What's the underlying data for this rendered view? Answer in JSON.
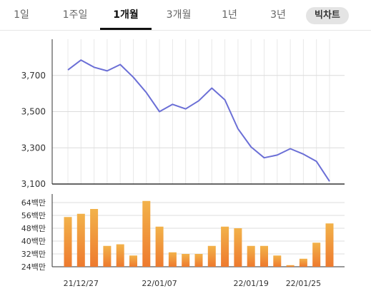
{
  "tabs": [
    {
      "label": "1일"
    },
    {
      "label": "1주일"
    },
    {
      "label": "1개월"
    },
    {
      "label": "3개월"
    },
    {
      "label": "1년"
    },
    {
      "label": "3년"
    },
    {
      "label": "빅차트"
    }
  ],
  "colors": {
    "line": "#6b6fd6",
    "bar_top": "#f2b24a",
    "bar_bottom": "#ee7a2e",
    "grid": "#dcdcdc",
    "axis": "#333333"
  },
  "chart_data": [
    {
      "type": "line",
      "ylim": [
        3100,
        3900
      ],
      "yticks": [
        "3,700",
        "3,500",
        "3,300",
        "3,100"
      ],
      "ytick_values": [
        3700,
        3500,
        3300,
        3100
      ],
      "values": [
        3730,
        3785,
        3745,
        3725,
        3760,
        3690,
        3605,
        3500,
        3540,
        3515,
        3560,
        3630,
        3565,
        3405,
        3305,
        3245,
        3260,
        3295,
        3265,
        3225,
        3115
      ]
    },
    {
      "type": "bar",
      "ylim": [
        24,
        64
      ],
      "yticks": [
        "64백만",
        "56백만",
        "48백만",
        "40백만",
        "32백만",
        "24백만"
      ],
      "ytick_values": [
        64,
        56,
        48,
        40,
        32,
        24
      ],
      "values": [
        55,
        57,
        60,
        37,
        38,
        31,
        65,
        49,
        33,
        32,
        32,
        37,
        49,
        48,
        37,
        37,
        31,
        25,
        29,
        39,
        51
      ]
    }
  ],
  "xaxis": {
    "labels": [
      "21/12/27",
      "22/01/07",
      "22/01/19",
      "22/01/25"
    ],
    "label_index": [
      1,
      7,
      14,
      18
    ]
  }
}
